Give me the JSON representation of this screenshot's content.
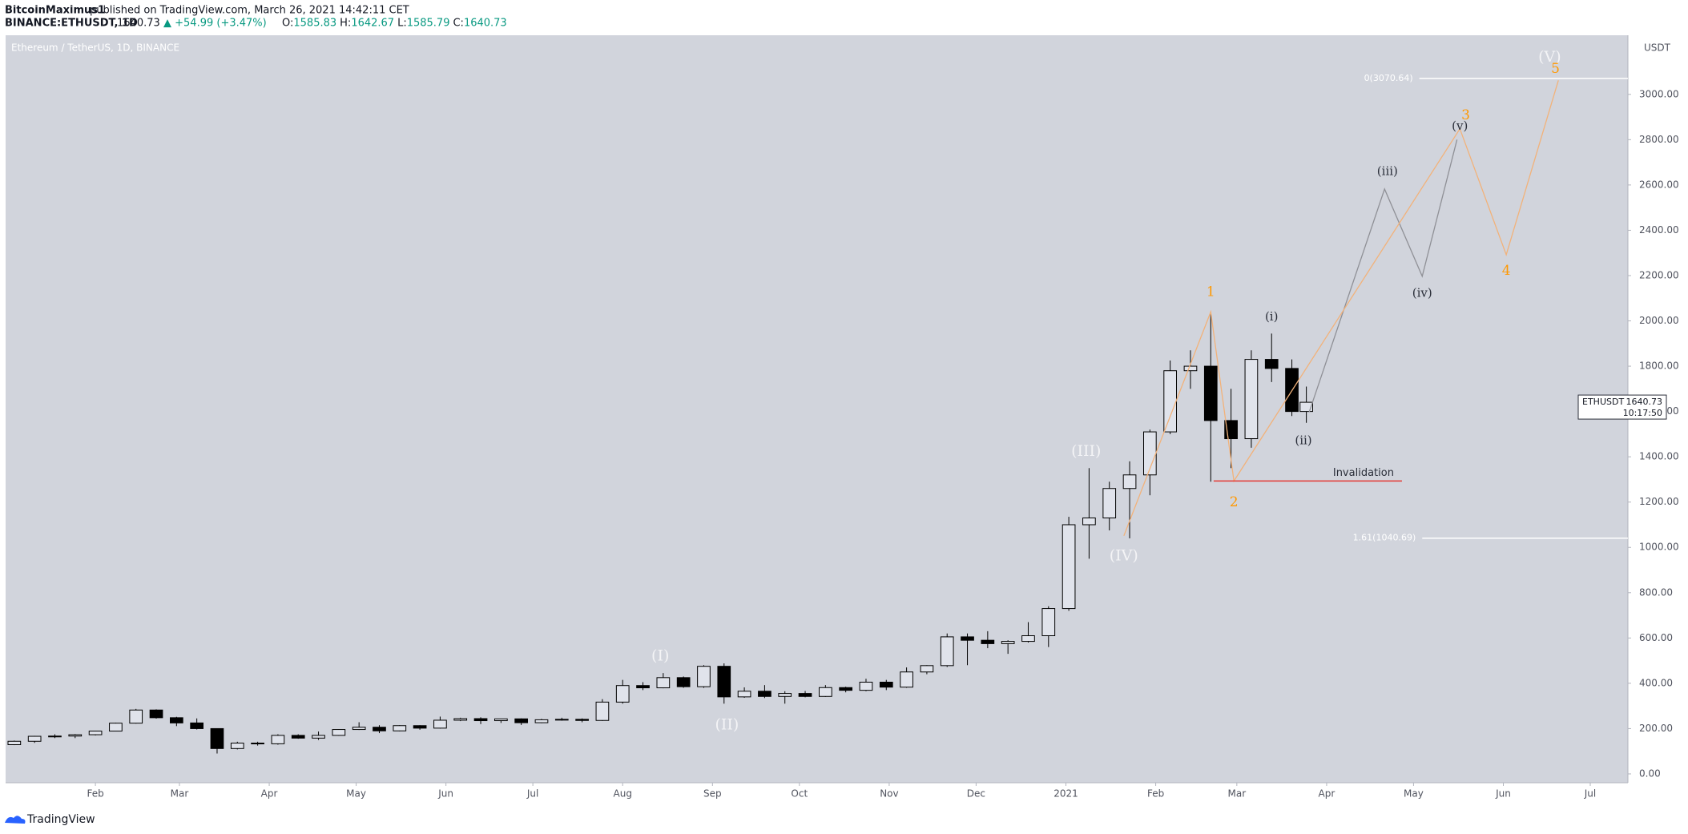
{
  "header": {
    "author": "BitcoinMaximus1",
    "published": "published on TradingView.com, March 26, 2021 14:42:11 CET",
    "symbol": "BINANCE:ETHUSDT, 1D",
    "price": "1640.73",
    "change": "▲ +54.99 (+3.47%)",
    "quote": [
      "O:",
      "1585.83",
      "H:",
      "1642.67",
      "L:",
      "1585.79",
      "C:",
      "1640.73"
    ]
  },
  "footer": {
    "brand": "TradingView"
  },
  "chart_data": {
    "type": "candlestick",
    "title": "Ethereum / TetherUS, 1D, BINANCE",
    "y_unit": "USDT",
    "x": [
      3,
      10,
      17,
      24,
      31,
      38,
      45,
      52,
      59,
      66,
      73,
      80,
      87,
      94,
      101,
      108,
      115,
      122,
      129,
      136,
      143,
      150,
      157,
      164,
      171,
      178,
      185,
      192,
      199,
      206,
      213,
      220,
      227,
      234,
      241,
      248,
      255,
      262,
      269,
      276,
      283,
      290,
      297,
      304,
      311,
      318,
      325,
      332,
      339,
      346,
      353,
      360,
      367,
      374,
      381,
      388,
      395,
      402,
      409,
      416,
      423,
      430,
      437,
      444,
      449
    ],
    "open": [
      129,
      144,
      166,
      167,
      173,
      189,
      224,
      282,
      248,
      225,
      200,
      112,
      136,
      133,
      170,
      158,
      170,
      196,
      206,
      190,
      213,
      202,
      237,
      244,
      235,
      243,
      226,
      239,
      241,
      236,
      317,
      390,
      380,
      425,
      385,
      475,
      340,
      365,
      342,
      355,
      342,
      381,
      369,
      405,
      383,
      450,
      478,
      605,
      590,
      575,
      585,
      610,
      730,
      1100,
      1130,
      1260,
      1320,
      1510,
      1780,
      1800,
      1560,
      1480,
      1830,
      1790,
      1600
    ],
    "high": [
      147,
      168,
      175,
      176,
      190,
      226,
      287,
      285,
      252,
      245,
      201,
      142,
      142,
      175,
      175,
      187,
      197,
      228,
      215,
      215,
      215,
      253,
      248,
      250,
      240,
      245,
      243,
      248,
      245,
      330,
      415,
      405,
      445,
      430,
      480,
      488,
      382,
      392,
      365,
      366,
      392,
      385,
      420,
      415,
      470,
      480,
      620,
      620,
      630,
      590,
      670,
      740,
      1135,
      1350,
      1290,
      1380,
      1520,
      1825,
      1870,
      2040,
      1700,
      1870,
      1944,
      1830,
      1710
    ],
    "low": [
      127,
      137,
      158,
      158,
      170,
      188,
      222,
      244,
      211,
      196,
      90,
      108,
      125,
      129,
      155,
      150,
      168,
      194,
      180,
      188,
      195,
      200,
      233,
      220,
      225,
      216,
      224,
      235,
      228,
      234,
      310,
      370,
      378,
      380,
      380,
      310,
      336,
      335,
      310,
      338,
      340,
      360,
      365,
      370,
      380,
      440,
      472,
      480,
      555,
      530,
      580,
      560,
      720,
      950,
      1075,
      1040,
      1230,
      1500,
      1700,
      1290,
      1350,
      1440,
      1730,
      1580,
      1550
    ],
    "close": [
      144,
      166,
      167,
      173,
      189,
      224,
      282,
      248,
      225,
      200,
      112,
      136,
      133,
      170,
      158,
      170,
      196,
      206,
      190,
      213,
      202,
      237,
      244,
      235,
      243,
      226,
      239,
      241,
      236,
      317,
      390,
      380,
      425,
      385,
      475,
      340,
      365,
      342,
      355,
      342,
      381,
      369,
      405,
      383,
      450,
      478,
      605,
      590,
      575,
      585,
      610,
      730,
      1100,
      1130,
      1260,
      1320,
      1510,
      1780,
      1800,
      1560,
      1480,
      1830,
      1790,
      1600,
      1640.73
    ],
    "xlim": [
      0,
      560
    ],
    "xticks": [
      {
        "value": 31,
        "label": "Feb"
      },
      {
        "value": 60,
        "label": "Mar"
      },
      {
        "value": 91,
        "label": "Apr"
      },
      {
        "value": 121,
        "label": "May"
      },
      {
        "value": 152,
        "label": "Jun"
      },
      {
        "value": 182,
        "label": "Jul"
      },
      {
        "value": 213,
        "label": "Aug"
      },
      {
        "value": 244,
        "label": "Sep"
      },
      {
        "value": 274,
        "label": "Oct"
      },
      {
        "value": 305,
        "label": "Nov"
      },
      {
        "value": 335,
        "label": "Dec"
      },
      {
        "value": 366,
        "label": "2021"
      },
      {
        "value": 397,
        "label": "Feb"
      },
      {
        "value": 425,
        "label": "Mar"
      },
      {
        "value": 456,
        "label": "Apr"
      },
      {
        "value": 486,
        "label": "May"
      },
      {
        "value": 517,
        "label": "Jun"
      },
      {
        "value": 547,
        "label": "Jul"
      }
    ],
    "ylim": [
      -39,
      3261
    ],
    "yticks": [
      {
        "value": 0,
        "label": "0.00"
      },
      {
        "value": 200,
        "label": "200.00"
      },
      {
        "value": 400,
        "label": "400.00"
      },
      {
        "value": 600,
        "label": "600.00"
      },
      {
        "value": 800,
        "label": "800.00"
      },
      {
        "value": 1000,
        "label": "1000.00"
      },
      {
        "value": 1200,
        "label": "1200.00"
      },
      {
        "value": 1400,
        "label": "1400.00"
      },
      {
        "value": 1600,
        "label": "1600.00"
      },
      {
        "value": 1800,
        "label": "1800.00"
      },
      {
        "value": 2000,
        "label": "2000.00"
      },
      {
        "value": 2200,
        "label": "2200.00"
      },
      {
        "value": 2400,
        "label": "2400.00"
      },
      {
        "value": 2600,
        "label": "2600.00"
      },
      {
        "value": 2800,
        "label": "2800.00"
      },
      {
        "value": 3000,
        "label": "3000.00"
      }
    ],
    "price_tag": {
      "symbol": "ETHUSDT",
      "countdown": "10:17:50"
    },
    "paths": [
      {
        "color": "#8f9096",
        "points": [
          [
            450,
            1598
          ],
          [
            476,
            2582
          ],
          [
            489,
            2197
          ],
          [
            501,
            2800
          ]
        ]
      },
      {
        "color": "#f2b27a",
        "points": [
          [
            386,
            1051
          ],
          [
            416,
            2040
          ],
          [
            424,
            1293
          ],
          [
            502,
            2848
          ],
          [
            518,
            2292
          ],
          [
            536,
            3062
          ]
        ]
      }
    ],
    "levels": [
      {
        "label": "0(3070.64)",
        "value": 3070.64,
        "x_start": 488,
        "color": "#ffffff"
      },
      {
        "label": "1.61(1040.69)",
        "value": 1040.69,
        "x_start": 489,
        "color": "#ffffff"
      },
      {
        "label": "Invalidation",
        "value": 1293,
        "x_start": 417,
        "x_end": 482,
        "color": "#e53935"
      }
    ],
    "waves": [
      {
        "label": "(I)",
        "x": 226,
        "y": 518,
        "color": "#f4f4f6",
        "size": 19
      },
      {
        "label": "(II)",
        "x": 249,
        "y": 214,
        "color": "#f4f4f6",
        "size": 19
      },
      {
        "label": "(III)",
        "x": 373,
        "y": 1422,
        "color": "#f4f4f6",
        "size": 19
      },
      {
        "label": "(IV)",
        "x": 386,
        "y": 960,
        "color": "#f4f4f6",
        "size": 19
      },
      {
        "label": "(V)",
        "x": 533,
        "y": 3162,
        "color": "#f4f4f6",
        "size": 19
      },
      {
        "label": "1",
        "x": 416,
        "y": 2125,
        "color": "#ff9800",
        "size": 17
      },
      {
        "label": "2",
        "x": 424,
        "y": 1198,
        "color": "#ff9800",
        "size": 17
      },
      {
        "label": "3",
        "x": 504,
        "y": 2905,
        "color": "#ff9800",
        "size": 17
      },
      {
        "label": "4",
        "x": 518,
        "y": 2220,
        "color": "#ff9800",
        "size": 17
      },
      {
        "label": "5",
        "x": 535,
        "y": 3110,
        "color": "#ff9800",
        "size": 17
      },
      {
        "label": "(i)",
        "x": 437,
        "y": 2016,
        "color": "#2a2e39",
        "size": 15
      },
      {
        "label": "(ii)",
        "x": 448,
        "y": 1469,
        "color": "#2a2e39",
        "size": 15
      },
      {
        "label": "(iii)",
        "x": 477,
        "y": 2658,
        "color": "#2a2e39",
        "size": 15
      },
      {
        "label": "(iv)",
        "x": 489,
        "y": 2120,
        "color": "#2a2e39",
        "size": 15
      },
      {
        "label": "(v)",
        "x": 502,
        "y": 2857,
        "color": "#2a2e39",
        "size": 15
      }
    ]
  }
}
